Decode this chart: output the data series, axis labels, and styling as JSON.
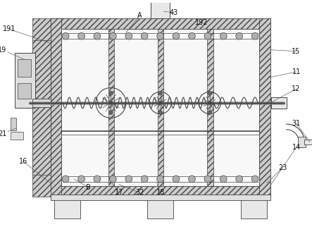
{
  "bg_color": "#ffffff",
  "lc": "#444444",
  "hatch_fc": "#cccccc",
  "inner_fc": "#f0f0f0",
  "figsize": [
    4.43,
    3.49
  ],
  "dpi": 100
}
